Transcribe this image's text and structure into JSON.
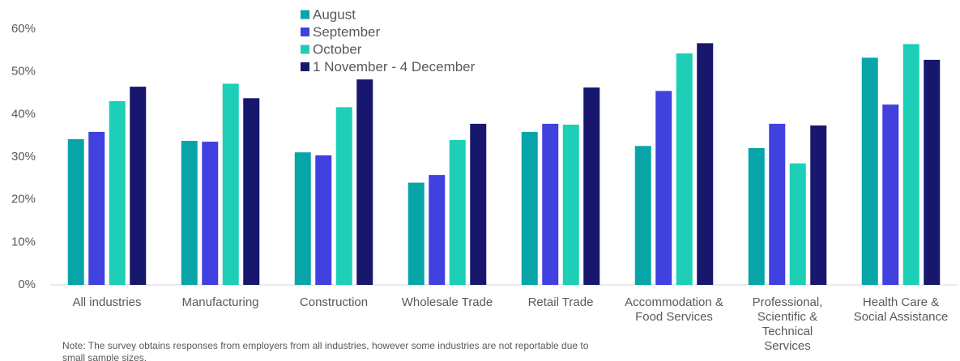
{
  "chart_data": {
    "type": "bar",
    "categories": [
      "All industries",
      "Manufacturing",
      "Construction",
      "Wholesale Trade",
      "Retail Trade",
      "Accommodation &\nFood Services",
      "Professional,\nScientific &\nTechnical\nServices",
      "Health Care &\nSocial Assistance"
    ],
    "series": [
      {
        "name": "August",
        "color": "#08a5a8",
        "values": [
          34.2,
          33.8,
          31.1,
          24.0,
          35.9,
          32.6,
          32.1,
          53.3
        ]
      },
      {
        "name": "September",
        "color": "#4141df",
        "values": [
          35.9,
          33.6,
          30.4,
          25.8,
          37.8,
          45.5,
          37.8,
          42.3
        ]
      },
      {
        "name": "October",
        "color": "#1dcfb6",
        "values": [
          43.1,
          47.2,
          41.7,
          34.0,
          37.6,
          54.3,
          28.5,
          56.5
        ]
      },
      {
        "name": "1 November - 4 December",
        "color": "#17176e",
        "values": [
          46.5,
          43.8,
          48.2,
          37.8,
          46.3,
          56.7,
          37.4,
          52.8
        ]
      }
    ],
    "ylim": [
      0,
      60
    ],
    "yticks": [
      {
        "value": 0,
        "label": "0%"
      },
      {
        "value": 10,
        "label": "10%"
      },
      {
        "value": 20,
        "label": "20%"
      },
      {
        "value": 30,
        "label": "30%"
      },
      {
        "value": 40,
        "label": "40%"
      },
      {
        "value": 50,
        "label": "50%"
      },
      {
        "value": 60,
        "label": "60%"
      }
    ],
    "grid": false,
    "legend": "top",
    "note": "Note: The survey obtains responses from employers from all industries, however some industries are not reportable due to small sample sizes."
  }
}
